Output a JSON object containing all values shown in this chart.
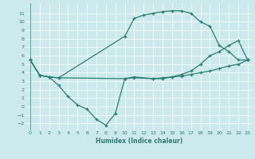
{
  "xlabel": "Humidex (Indice chaleur)",
  "bg_color": "#cce9ed",
  "line_color": "#2e7d72",
  "grid_color": "#ffffff",
  "curve1_x": [
    0,
    1,
    2,
    3,
    10,
    11,
    12,
    13,
    14,
    15,
    16,
    17,
    18,
    19,
    20,
    21,
    22,
    23
  ],
  "curve1_y": [
    5.5,
    3.7,
    3.5,
    3.4,
    8.3,
    10.4,
    10.8,
    11.0,
    11.2,
    11.3,
    11.3,
    11.0,
    10.0,
    9.5,
    7.2,
    6.5,
    5.5,
    5.5
  ],
  "curve2_x": [
    0,
    1,
    2,
    3,
    4,
    5,
    6,
    7,
    8,
    9,
    10,
    11,
    13,
    14,
    15,
    16,
    17,
    18,
    19,
    20,
    21,
    22,
    23
  ],
  "curve2_y": [
    5.5,
    3.7,
    3.5,
    2.5,
    1.2,
    0.2,
    -0.3,
    -1.5,
    -2.2,
    -0.8,
    3.3,
    3.5,
    3.3,
    3.3,
    3.5,
    3.6,
    3.8,
    4.0,
    4.2,
    4.5,
    4.8,
    5.0,
    5.5
  ],
  "curve3_x": [
    0,
    1,
    2,
    3,
    10,
    11,
    13,
    14,
    15,
    16,
    17,
    18,
    19,
    20,
    21,
    22,
    23
  ],
  "curve3_y": [
    5.5,
    3.7,
    3.5,
    3.4,
    3.3,
    3.4,
    3.3,
    3.4,
    3.5,
    3.8,
    4.2,
    5.0,
    6.0,
    6.5,
    7.2,
    7.8,
    5.5
  ],
  "xlim": [
    -0.5,
    23.5
  ],
  "ylim": [
    -2.8,
    12.2
  ],
  "yticks": [
    -2,
    -1,
    0,
    1,
    2,
    3,
    4,
    5,
    6,
    7,
    8,
    9,
    10,
    11
  ],
  "xticks": [
    0,
    1,
    2,
    3,
    4,
    5,
    6,
    7,
    8,
    9,
    10,
    11,
    12,
    13,
    14,
    15,
    16,
    17,
    18,
    19,
    20,
    21,
    22,
    23
  ]
}
